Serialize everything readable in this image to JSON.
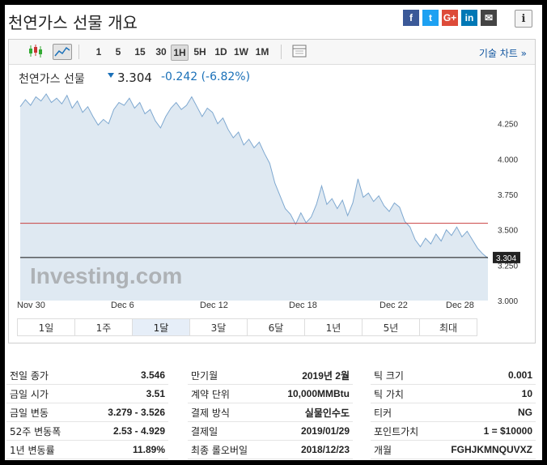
{
  "header": {
    "title": "천연가스 선물 개요",
    "share": [
      {
        "name": "facebook",
        "glyph": "f",
        "color": "#3b5998"
      },
      {
        "name": "twitter",
        "glyph": "t",
        "color": "#1da1f2"
      },
      {
        "name": "google-plus",
        "glyph": "G+",
        "color": "#dd4b39"
      },
      {
        "name": "linkedin",
        "glyph": "in",
        "color": "#0077b5"
      },
      {
        "name": "email",
        "glyph": "✉",
        "color": "#444"
      }
    ],
    "info_glyph": "i"
  },
  "toolbar": {
    "timeframes": [
      "1",
      "5",
      "15",
      "30",
      "1H",
      "5H",
      "1D",
      "1W",
      "1M"
    ],
    "selected_timeframe": "1H",
    "technical_label": "기술 차트 »"
  },
  "quote": {
    "symbol": "천연가스 선물",
    "price": "3.304",
    "change": "-0.242 (-6.82%)",
    "arrow_color": "#1a70b8"
  },
  "chart_data": {
    "type": "area",
    "watermark": "Investing.com",
    "x_tick_labels": [
      "Nov 30",
      "Dec 6",
      "Dec 12",
      "Dec 18",
      "Dec 22",
      "Dec 28"
    ],
    "y_tick_labels": [
      "4.250",
      "4.000",
      "3.750",
      "3.500",
      "3.250",
      "3.000"
    ],
    "ylim": [
      3.0,
      4.5
    ],
    "reference_line": 3.546,
    "current_price": 3.304,
    "current_price_label": "3.304",
    "series": [
      {
        "values": [
          4.37,
          4.42,
          4.38,
          4.44,
          4.41,
          4.46,
          4.4,
          4.43,
          4.39,
          4.45,
          4.36,
          4.41,
          4.33,
          4.37,
          4.3,
          4.24,
          4.28,
          4.25,
          4.35,
          4.4,
          4.38,
          4.43,
          4.36,
          4.4,
          4.32,
          4.35,
          4.27,
          4.22,
          4.3,
          4.36,
          4.4,
          4.35,
          4.38,
          4.44,
          4.37,
          4.3,
          4.36,
          4.33,
          4.25,
          4.29,
          4.21,
          4.15,
          4.19,
          4.1,
          4.14,
          4.08,
          4.12,
          4.04,
          3.97,
          3.83,
          3.74,
          3.65,
          3.61,
          3.54,
          3.62,
          3.55,
          3.59,
          3.68,
          3.81,
          3.68,
          3.72,
          3.65,
          3.71,
          3.6,
          3.69,
          3.86,
          3.73,
          3.76,
          3.7,
          3.74,
          3.67,
          3.63,
          3.69,
          3.66,
          3.56,
          3.52,
          3.43,
          3.38,
          3.44,
          3.4,
          3.47,
          3.42,
          3.5,
          3.46,
          3.52,
          3.45,
          3.49,
          3.43,
          3.37,
          3.33,
          3.3
        ]
      }
    ],
    "color": "#7ea8d0",
    "fill": "#dfe9f2",
    "grid": false
  },
  "ranges": {
    "items": [
      "1일",
      "1주",
      "1달",
      "3달",
      "6달",
      "1년",
      "5년",
      "최대"
    ],
    "selected": "1달"
  },
  "info": {
    "col1": [
      {
        "label": "전일 종가",
        "value": "3.546"
      },
      {
        "label": "금일 시가",
        "value": "3.51"
      },
      {
        "label": "금일 변동",
        "value": "3.279 - 3.526"
      },
      {
        "label": "52주 변동폭",
        "value": "2.53 - 4.929"
      },
      {
        "label": "1년 변동률",
        "value": "11.89%"
      }
    ],
    "col2": [
      {
        "label": "만기월",
        "value": "2019년 2월"
      },
      {
        "label": "계약 단위",
        "value": "10,000MMBtu"
      },
      {
        "label": "결제 방식",
        "value": "실물인수도"
      },
      {
        "label": "결제일",
        "value": "2019/01/29"
      },
      {
        "label": "최종 롤오버일",
        "value": "2018/12/23"
      }
    ],
    "col3": [
      {
        "label": "틱 크기",
        "value": "0.001"
      },
      {
        "label": "틱 가치",
        "value": "10"
      },
      {
        "label": "티커",
        "value": "NG"
      },
      {
        "label": "포인트가치",
        "value": "1 = $10000"
      },
      {
        "label": "개월",
        "value": "FGHJKMNQUVXZ"
      }
    ]
  }
}
